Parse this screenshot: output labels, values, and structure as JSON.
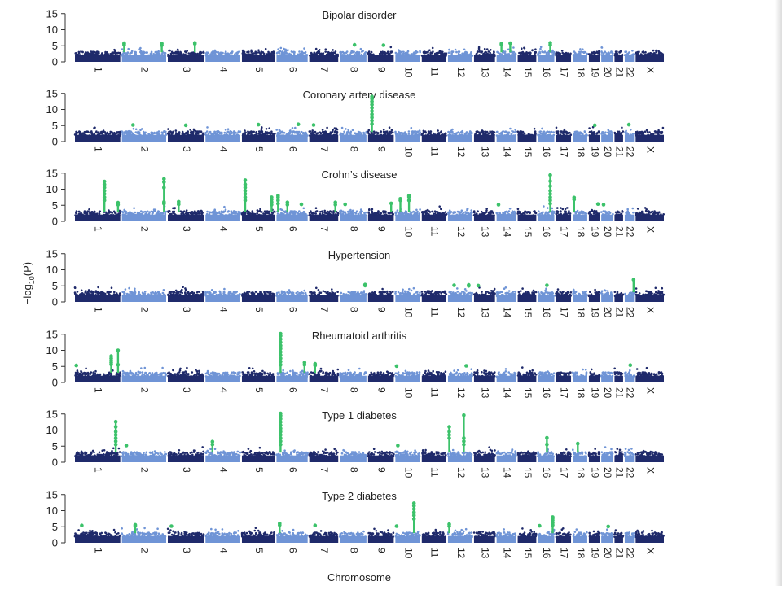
{
  "figure": {
    "ylabel_main": "−log",
    "ylabel_sub": "10",
    "ylabel_arg": "(P)",
    "xlabel": "Chromosome"
  },
  "colors": {
    "chr_odd": "#1f2a6b",
    "chr_even": "#6f94d6",
    "significant": "#3cc26a"
  },
  "chart_data": {
    "type": "scatter",
    "subtype": "manhattan",
    "ylim": [
      0,
      15
    ],
    "yticks": [
      0,
      5,
      10,
      15
    ],
    "chromosomes": [
      "1",
      "2",
      "3",
      "4",
      "5",
      "6",
      "7",
      "8",
      "9",
      "10",
      "11",
      "12",
      "13",
      "14",
      "15",
      "16",
      "17",
      "18",
      "19",
      "20",
      "21",
      "22",
      "X"
    ],
    "chromosome_lengths": [
      249,
      243,
      198,
      191,
      181,
      171,
      159,
      146,
      141,
      136,
      135,
      134,
      115,
      107,
      102,
      90,
      83,
      80,
      59,
      64,
      47,
      51,
      155
    ],
    "panels": [
      {
        "title": "Bipolar disorder",
        "significant_hits": [
          {
            "chr": "2",
            "pos": 0.05,
            "values": [
              5.3,
              5.6,
              5.8
            ]
          },
          {
            "chr": "2",
            "pos": 0.9,
            "values": [
              5.2,
              5.7
            ]
          },
          {
            "chr": "3",
            "pos": 0.75,
            "values": [
              5.6,
              5.9
            ]
          },
          {
            "chr": "8",
            "pos": 0.55,
            "values": [
              5.3
            ]
          },
          {
            "chr": "9",
            "pos": 0.6,
            "values": [
              5.2
            ]
          },
          {
            "chr": "14",
            "pos": 0.25,
            "values": [
              5.4,
              5.7
            ]
          },
          {
            "chr": "14",
            "pos": 0.7,
            "values": [
              5.8
            ]
          },
          {
            "chr": "16",
            "pos": 0.75,
            "values": [
              5.3,
              5.9
            ]
          }
        ]
      },
      {
        "title": "Coronary artery disease",
        "significant_hits": [
          {
            "chr": "2",
            "pos": 0.25,
            "values": [
              5.2
            ]
          },
          {
            "chr": "3",
            "pos": 0.5,
            "values": [
              5.1
            ]
          },
          {
            "chr": "5",
            "pos": 0.5,
            "values": [
              5.3
            ]
          },
          {
            "chr": "6",
            "pos": 0.7,
            "values": [
              5.4
            ]
          },
          {
            "chr": "7",
            "pos": 0.15,
            "values": [
              5.2
            ]
          },
          {
            "chr": "9",
            "pos": 0.15,
            "values": [
              5.5,
              6.5,
              7.5,
              8.5,
              9.5,
              10.5,
              11.5,
              12.5,
              13.3,
              14.0
            ]
          },
          {
            "chr": "19",
            "pos": 0.55,
            "values": [
              5.1
            ]
          },
          {
            "chr": "22",
            "pos": 0.45,
            "values": [
              5.3
            ]
          }
        ]
      },
      {
        "title": "Crohn’s disease",
        "significant_hits": [
          {
            "chr": "1",
            "pos": 0.65,
            "values": [
              6.5,
              7.5,
              8.5,
              9.5,
              10.5,
              11.5,
              12.4
            ]
          },
          {
            "chr": "1",
            "pos": 0.95,
            "values": [
              5.2,
              5.8
            ]
          },
          {
            "chr": "2",
            "pos": 0.95,
            "values": [
              5.5,
              6.0,
              10.5,
              12.2,
              13.2
            ]
          },
          {
            "chr": "3",
            "pos": 0.3,
            "values": [
              5.3,
              6.1
            ]
          },
          {
            "chr": "5",
            "pos": 0.1,
            "values": [
              6.5,
              7.5,
              8.5,
              9.5,
              10.5,
              11.5,
              12.8
            ]
          },
          {
            "chr": "5",
            "pos": 0.9,
            "values": [
              5.2,
              6.0,
              6.8,
              7.5
            ]
          },
          {
            "chr": "6",
            "pos": 0.05,
            "values": [
              5.5,
              6.5,
              7.5,
              8.0
            ]
          },
          {
            "chr": "6",
            "pos": 0.35,
            "values": [
              5.2,
              5.9
            ]
          },
          {
            "chr": "6",
            "pos": 0.8,
            "values": [
              5.3
            ]
          },
          {
            "chr": "7",
            "pos": 0.9,
            "values": [
              5.2,
              5.9
            ]
          },
          {
            "chr": "8",
            "pos": 0.2,
            "values": [
              5.3
            ]
          },
          {
            "chr": "9",
            "pos": 0.9,
            "values": [
              5.6
            ]
          },
          {
            "chr": "10",
            "pos": 0.2,
            "values": [
              6.5,
              7.0
            ]
          },
          {
            "chr": "10",
            "pos": 0.55,
            "values": [
              6.5,
              7.6,
              8.0
            ]
          },
          {
            "chr": "14",
            "pos": 0.1,
            "values": [
              5.2
            ]
          },
          {
            "chr": "16",
            "pos": 0.75,
            "values": [
              5.5,
              6.5,
              7.5,
              8.5,
              9.5,
              11.0,
              12.5,
              14.4
            ]
          },
          {
            "chr": "18",
            "pos": 0.1,
            "values": [
              6.8,
              7.4
            ]
          },
          {
            "chr": "19",
            "pos": 0.85,
            "values": [
              5.4
            ]
          },
          {
            "chr": "20",
            "pos": 0.2,
            "values": [
              5.2
            ]
          }
        ]
      },
      {
        "title": "Hypertension",
        "significant_hits": [
          {
            "chr": "8",
            "pos": 0.95,
            "values": [
              5.1,
              5.4
            ]
          },
          {
            "chr": "12",
            "pos": 0.25,
            "values": [
              5.2
            ]
          },
          {
            "chr": "12",
            "pos": 0.85,
            "values": [
              5.0,
              5.3
            ]
          },
          {
            "chr": "13",
            "pos": 0.2,
            "values": [
              5.1
            ]
          },
          {
            "chr": "16",
            "pos": 0.55,
            "values": [
              5.2
            ]
          },
          {
            "chr": "22",
            "pos": 0.95,
            "values": [
              6.9
            ]
          }
        ]
      },
      {
        "title": "Rheumatoid arthritis",
        "significant_hits": [
          {
            "chr": "1",
            "pos": 0.03,
            "values": [
              5.3
            ]
          },
          {
            "chr": "1",
            "pos": 0.8,
            "values": [
              5.6,
              6.2,
              6.8,
              7.5,
              8.2
            ]
          },
          {
            "chr": "1",
            "pos": 0.95,
            "values": [
              5.5,
              10.0
            ]
          },
          {
            "chr": "6",
            "pos": 0.13,
            "values": [
              5.5,
              6.5,
              7.5,
              8.5,
              9.5,
              10.5,
              11.5,
              12.5,
              13.5,
              14.5,
              15.2
            ]
          },
          {
            "chr": "6",
            "pos": 0.9,
            "values": [
              5.5,
              6.2
            ]
          },
          {
            "chr": "7",
            "pos": 0.2,
            "values": [
              5.3,
              5.8
            ]
          },
          {
            "chr": "10",
            "pos": 0.05,
            "values": [
              5.1
            ]
          },
          {
            "chr": "12",
            "pos": 0.75,
            "values": [
              5.2
            ]
          },
          {
            "chr": "22",
            "pos": 0.6,
            "values": [
              5.4
            ]
          }
        ]
      },
      {
        "title": "Type 1 diabetes",
        "significant_hits": [
          {
            "chr": "1",
            "pos": 0.9,
            "values": [
              5.5,
              6.5,
              7.5,
              8.5,
              9.5,
              11.0,
              12.6
            ]
          },
          {
            "chr": "2",
            "pos": 0.1,
            "values": [
              5.2
            ]
          },
          {
            "chr": "4",
            "pos": 0.2,
            "values": [
              5.5,
              6.4
            ]
          },
          {
            "chr": "6",
            "pos": 0.13,
            "values": [
              5.5,
              6.5,
              7.5,
              8.5,
              9.5,
              10.5,
              11.5,
              12.5,
              13.5,
              14.5,
              15.2
            ]
          },
          {
            "chr": "10",
            "pos": 0.1,
            "values": [
              5.2
            ]
          },
          {
            "chr": "12",
            "pos": 0.05,
            "values": [
              7.5,
              8.5,
              9.5,
              11.0
            ]
          },
          {
            "chr": "12",
            "pos": 0.65,
            "values": [
              5.5,
              6.5,
              7.5,
              14.6
            ]
          },
          {
            "chr": "16",
            "pos": 0.55,
            "values": [
              5.5,
              7.6
            ]
          },
          {
            "chr": "18",
            "pos": 0.35,
            "values": [
              5.8
            ]
          }
        ]
      },
      {
        "title": "Type 2 diabetes",
        "significant_hits": [
          {
            "chr": "1",
            "pos": 0.15,
            "values": [
              5.4
            ]
          },
          {
            "chr": "2",
            "pos": 0.3,
            "values": [
              5.3,
              5.6
            ]
          },
          {
            "chr": "3",
            "pos": 0.1,
            "values": [
              5.2
            ]
          },
          {
            "chr": "6",
            "pos": 0.1,
            "values": [
              5.5,
              6.0
            ]
          },
          {
            "chr": "7",
            "pos": 0.2,
            "values": [
              5.4
            ]
          },
          {
            "chr": "10",
            "pos": 0.05,
            "values": [
              5.2
            ]
          },
          {
            "chr": "10",
            "pos": 0.75,
            "values": [
              7.4,
              8.5,
              9.5,
              10.5,
              11.5,
              12.3
            ]
          },
          {
            "chr": "12",
            "pos": 0.05,
            "values": [
              5.2,
              5.8
            ]
          },
          {
            "chr": "16",
            "pos": 0.1,
            "values": [
              5.3
            ]
          },
          {
            "chr": "16",
            "pos": 0.9,
            "values": [
              5.5,
              6.2,
              7.0,
              7.6,
              8.0
            ]
          },
          {
            "chr": "20",
            "pos": 0.6,
            "values": [
              5.1
            ]
          }
        ]
      }
    ]
  }
}
